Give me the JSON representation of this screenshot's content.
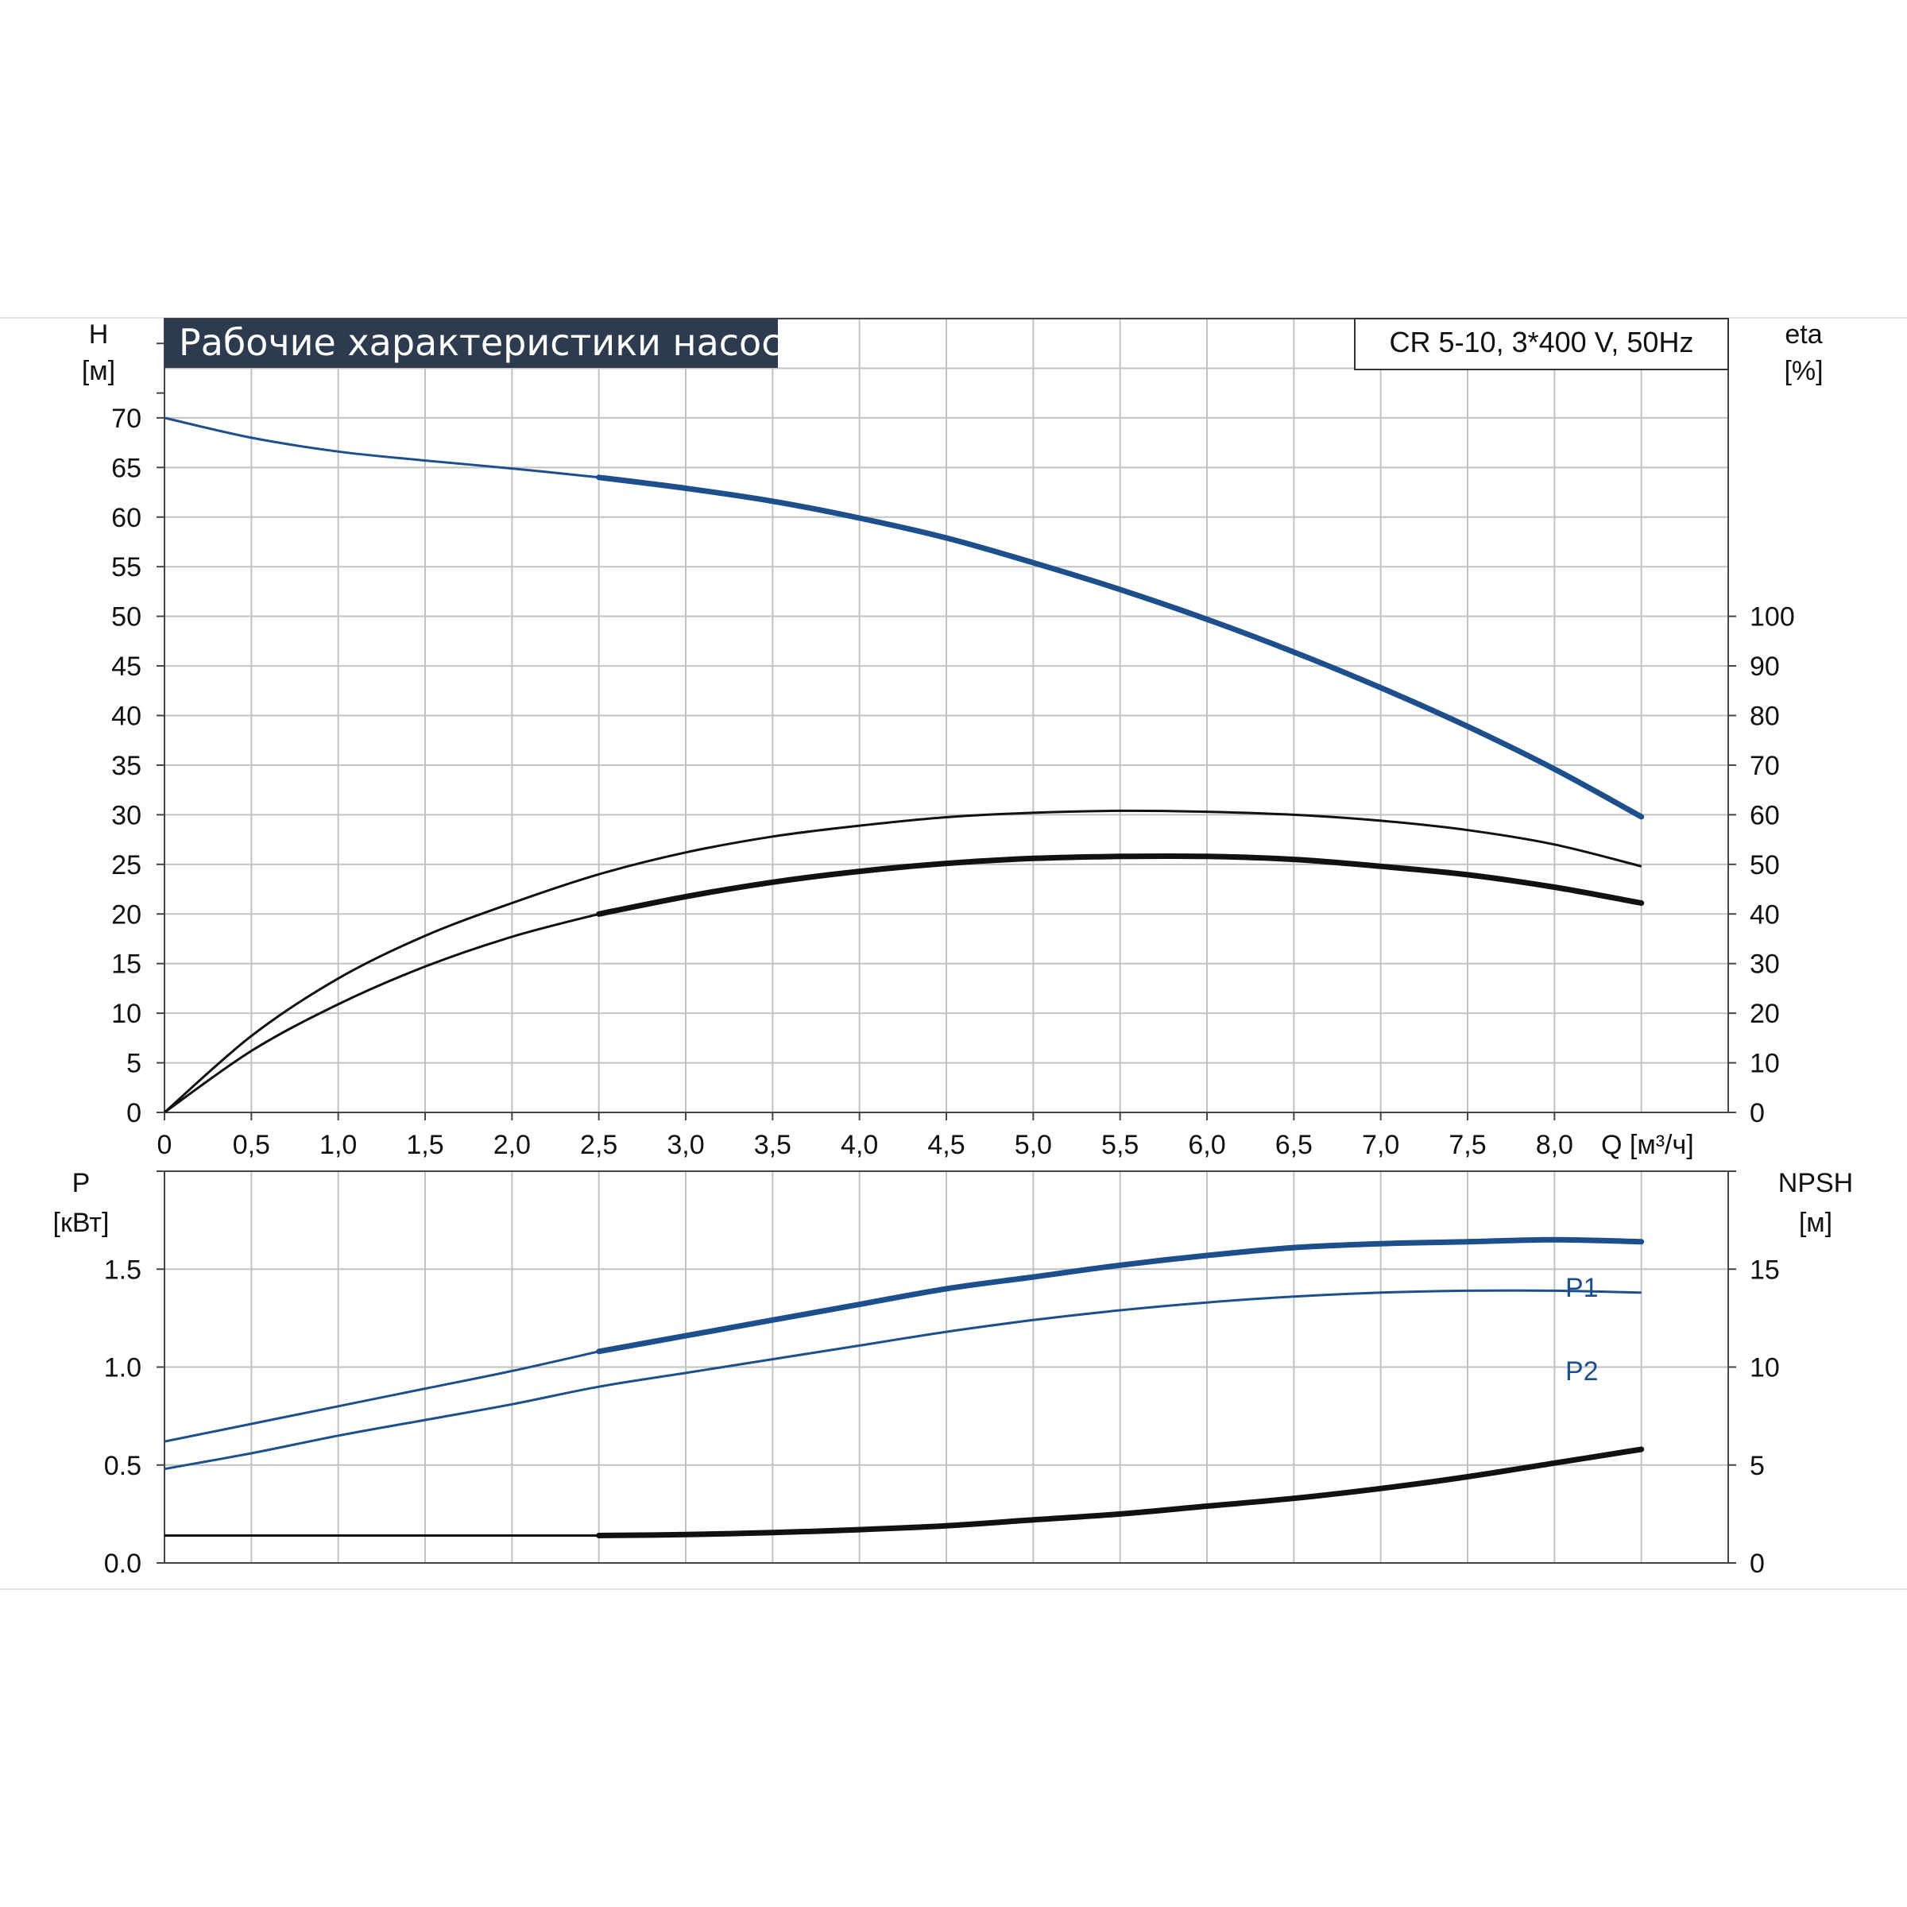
{
  "colors": {
    "grid": "#c2c2c2",
    "axis": "#444444",
    "blue": "#1d4f8c",
    "black": "#111111",
    "title_bg": "#2d3b4e",
    "separator": "#e3e3e3"
  },
  "chart_data": [
    {
      "type": "line",
      "title": "Рабочие характеристики насоса",
      "model": "CR 5-10, 3*400 V, 50Hz",
      "x_label": "Q [м³/ч]",
      "x_tick_labels": [
        "0",
        "0,5",
        "1,0",
        "1,5",
        "2,0",
        "2,5",
        "3,0",
        "3,5",
        "4,0",
        "4,5",
        "5,0",
        "5,5",
        "6,0",
        "6,5",
        "7,0",
        "7,5",
        "8,0"
      ],
      "xlim": [
        0,
        9.0
      ],
      "left_axis": {
        "label": "H",
        "unit": "[м]",
        "ticks": [
          "0",
          "5",
          "10",
          "15",
          "20",
          "25",
          "30",
          "35",
          "40",
          "45",
          "50",
          "55",
          "60",
          "65",
          "70"
        ],
        "ylim": [
          0,
          80
        ]
      },
      "right_axis": {
        "label": "eta",
        "unit": "[%]",
        "ticks": [
          "0",
          "10",
          "20",
          "30",
          "40",
          "50",
          "60",
          "70",
          "80",
          "90",
          "100"
        ],
        "ylim": [
          0,
          160
        ]
      },
      "grid": true,
      "series": [
        {
          "axis": "left",
          "color": "blue",
          "x": [
            0,
            0.5,
            1.0,
            1.5,
            2.0,
            2.5,
            3.0,
            3.5,
            4.0,
            4.5,
            5.0,
            5.5,
            6.0,
            6.5,
            7.0,
            7.5,
            8.0,
            8.5
          ],
          "y": [
            70.0,
            68.0,
            66.6,
            65.7,
            64.9,
            64.0,
            62.9,
            61.6,
            59.9,
            57.9,
            55.4,
            52.7,
            49.7,
            46.4,
            42.8,
            38.9,
            34.6,
            29.8
          ],
          "solid_from": 2.5
        },
        {
          "axis": "right",
          "color": "black",
          "x": [
            0,
            0.5,
            1.0,
            1.5,
            2.0,
            2.5,
            3.0,
            3.5,
            4.0,
            4.5,
            5.0,
            5.5,
            6.0,
            6.5,
            7.0,
            7.5,
            8.0,
            8.5
          ],
          "y": [
            0,
            15.4,
            27.0,
            35.6,
            42.2,
            48.0,
            52.4,
            55.6,
            57.8,
            59.5,
            60.4,
            60.8,
            60.6,
            60.0,
            58.8,
            56.9,
            54.0,
            49.6
          ],
          "solid_from": 9
        },
        {
          "axis": "right",
          "color": "black",
          "x": [
            0,
            0.5,
            1.0,
            1.5,
            2.0,
            2.5,
            3.0,
            3.5,
            4.0,
            4.5,
            5.0,
            5.5,
            6.0,
            6.5,
            7.0,
            7.5,
            8.0,
            8.5
          ],
          "y": [
            0,
            12.4,
            21.8,
            29.4,
            35.4,
            40.0,
            43.5,
            46.4,
            48.6,
            50.2,
            51.2,
            51.6,
            51.6,
            51.0,
            49.6,
            47.9,
            45.4,
            42.2
          ],
          "solid_from": 2.5
        }
      ]
    },
    {
      "type": "line",
      "x_label": "",
      "xlim": [
        0,
        9.0
      ],
      "left_axis": {
        "label": "P",
        "unit": "[кВт]",
        "ticks": [
          "0.0",
          "0.5",
          "1.0",
          "1.5"
        ],
        "ylim": [
          0,
          2.0
        ]
      },
      "right_axis": {
        "label": "NPSH",
        "unit": "[м]",
        "ticks": [
          "0",
          "5",
          "10",
          "15"
        ],
        "ylim": [
          0,
          20
        ]
      },
      "grid": true,
      "series": [
        {
          "name": "P1",
          "axis": "left",
          "color": "blue",
          "x": [
            0,
            0.5,
            1.0,
            1.5,
            2.0,
            2.5,
            3.0,
            3.5,
            4.0,
            4.5,
            5.0,
            5.5,
            6.0,
            6.5,
            7.0,
            7.5,
            8.0,
            8.5
          ],
          "y": [
            0.62,
            0.71,
            0.8,
            0.89,
            0.98,
            1.08,
            1.16,
            1.24,
            1.32,
            1.4,
            1.46,
            1.52,
            1.57,
            1.61,
            1.63,
            1.64,
            1.65,
            1.64
          ],
          "solid_from": 2.5
        },
        {
          "name": "P2",
          "axis": "left",
          "color": "blue",
          "x": [
            0,
            0.5,
            1.0,
            1.5,
            2.0,
            2.5,
            3.0,
            3.5,
            4.0,
            4.5,
            5.0,
            5.5,
            6.0,
            6.5,
            7.0,
            7.5,
            8.0,
            8.5
          ],
          "y": [
            0.48,
            0.56,
            0.65,
            0.73,
            0.81,
            0.9,
            0.97,
            1.04,
            1.11,
            1.18,
            1.24,
            1.29,
            1.33,
            1.36,
            1.38,
            1.39,
            1.39,
            1.38
          ],
          "solid_from": 9
        },
        {
          "axis": "right",
          "color": "black",
          "x": [
            0,
            0.5,
            1.0,
            1.5,
            2.0,
            2.5,
            3.0,
            3.5,
            4.0,
            4.5,
            5.0,
            5.5,
            6.0,
            6.5,
            7.0,
            7.5,
            8.0,
            8.5
          ],
          "y": [
            1.4,
            1.4,
            1.4,
            1.4,
            1.4,
            1.4,
            1.45,
            1.55,
            1.7,
            1.9,
            2.2,
            2.5,
            2.9,
            3.3,
            3.8,
            4.4,
            5.1,
            5.8
          ],
          "solid_from": 2.5
        }
      ]
    }
  ]
}
